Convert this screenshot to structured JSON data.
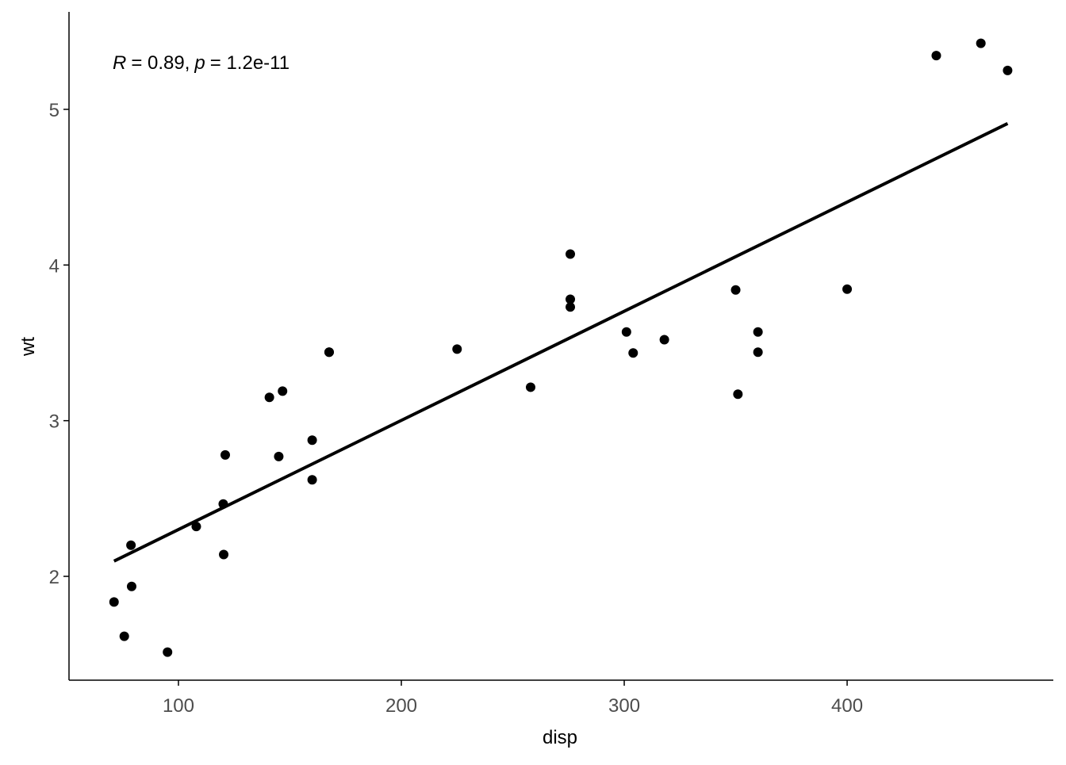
{
  "chart_data": {
    "type": "scatter",
    "x_label": "disp",
    "y_label": "wt",
    "annotation": {
      "r_symbol": "R",
      "r_text": "= 0.89,",
      "p_symbol": "p",
      "p_text": "= 1.2e-11"
    },
    "series": [
      {
        "color": "#000000",
        "x": [
          160,
          160,
          108,
          258,
          360,
          225,
          360,
          146.7,
          140.8,
          167.6,
          167.6,
          275.8,
          275.8,
          275.8,
          472,
          460,
          440,
          78.7,
          75.7,
          71.1,
          120.1,
          318,
          304,
          350,
          400,
          79,
          120.3,
          95.1,
          351,
          145,
          301,
          121
        ],
        "values": [
          2.62,
          2.875,
          2.32,
          3.215,
          3.44,
          3.46,
          3.57,
          3.19,
          3.15,
          3.44,
          3.44,
          4.07,
          3.73,
          3.78,
          5.25,
          5.424,
          5.345,
          2.2,
          1.615,
          1.835,
          2.465,
          3.52,
          3.435,
          3.84,
          3.845,
          1.935,
          2.14,
          1.513,
          3.17,
          2.77,
          3.57,
          2.78
        ]
      }
    ],
    "fit": {
      "color": "#000000",
      "x": [
        71.1,
        472
      ],
      "values": [
        2.098,
        4.909
      ]
    },
    "xlim": [
      50.9,
      492.5
    ],
    "ylim": [
      1.333,
      5.626
    ],
    "xticks": [
      100,
      200,
      300,
      400
    ],
    "yticks": [
      2,
      3,
      4,
      5
    ],
    "grid": false
  }
}
